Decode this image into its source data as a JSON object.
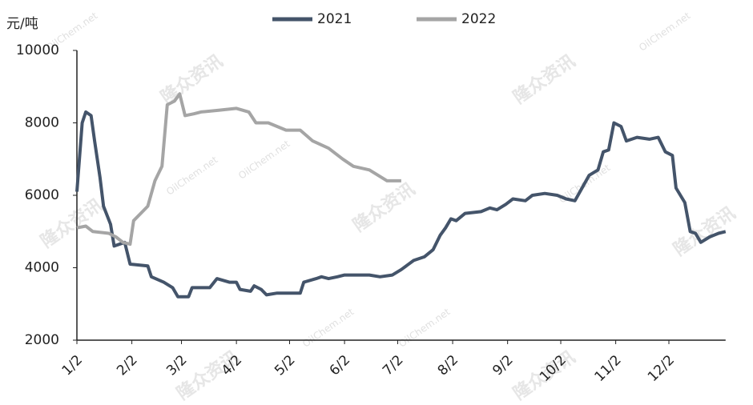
{
  "chart_data": {
    "type": "line",
    "y_label": "元/吨",
    "annotations": [
      "隆众资讯",
      "OilChem.net"
    ],
    "x": [],
    "xlim": [
      0,
      366
    ],
    "xticks": [
      {
        "value": 0,
        "label": "1/2"
      },
      {
        "value": 31,
        "label": "2/2"
      },
      {
        "value": 59,
        "label": "3/2"
      },
      {
        "value": 90,
        "label": "4/2"
      },
      {
        "value": 120,
        "label": "5/2"
      },
      {
        "value": 151,
        "label": "6/2"
      },
      {
        "value": 181,
        "label": "7/2"
      },
      {
        "value": 212,
        "label": "8/2"
      },
      {
        "value": 243,
        "label": "9/2"
      },
      {
        "value": 273,
        "label": "10/2"
      },
      {
        "value": 304,
        "label": "11/2"
      },
      {
        "value": 334,
        "label": "12/2"
      }
    ],
    "ylim": [
      2000,
      10000
    ],
    "yticks": [
      2000,
      4000,
      6000,
      8000,
      10000
    ],
    "legend": "top",
    "series": [
      {
        "name": "2021",
        "color": "#44546a",
        "x": [
          0,
          3,
          5,
          8,
          10,
          13,
          15,
          19,
          21,
          27,
          30,
          40,
          42,
          49,
          54,
          57,
          63,
          65,
          75,
          79,
          86,
          90,
          92,
          98,
          100,
          104,
          107,
          113,
          126,
          128,
          135,
          138,
          142,
          147,
          151,
          165,
          171,
          178,
          183,
          190,
          196,
          201,
          205,
          208,
          211,
          214,
          219,
          228,
          233,
          237,
          242,
          246,
          253,
          257,
          264,
          271,
          276,
          281,
          285,
          289,
          294,
          297,
          300,
          303,
          307,
          310,
          316,
          323,
          328,
          332,
          336,
          338,
          343,
          346,
          349,
          352,
          357,
          362,
          366
        ],
        "values": [
          6100,
          8000,
          8300,
          8200,
          7500,
          6500,
          5700,
          5200,
          4600,
          4700,
          4100,
          4050,
          3750,
          3600,
          3450,
          3200,
          3200,
          3450,
          3450,
          3700,
          3600,
          3600,
          3400,
          3350,
          3500,
          3400,
          3250,
          3300,
          3300,
          3600,
          3700,
          3750,
          3700,
          3750,
          3800,
          3800,
          3750,
          3800,
          3950,
          4200,
          4300,
          4500,
          4900,
          5100,
          5350,
          5300,
          5500,
          5550,
          5650,
          5600,
          5750,
          5900,
          5850,
          6000,
          6050,
          6000,
          5900,
          5850,
          6200,
          6550,
          6700,
          7200,
          7250,
          8000,
          7900,
          7500,
          7600,
          7550,
          7600,
          7200,
          7100,
          6200,
          5800,
          5000,
          4950,
          4700,
          4850,
          4950,
          5000
        ]
      },
      {
        "name": "2022",
        "color": "#a5a5a5",
        "x": [
          0,
          5,
          9,
          18,
          22,
          26,
          30,
          32,
          36,
          40,
          44,
          48,
          51,
          55,
          58,
          61,
          66,
          70,
          80,
          90,
          97,
          101,
          108,
          118,
          126,
          133,
          142,
          150,
          156,
          165,
          175,
          183
        ],
        "values": [
          5100,
          5150,
          5000,
          4950,
          4850,
          4700,
          4650,
          5300,
          5500,
          5700,
          6400,
          6800,
          8500,
          8600,
          8800,
          8200,
          8250,
          8300,
          8350,
          8400,
          8300,
          8000,
          8000,
          7800,
          7800,
          7500,
          7300,
          7000,
          6800,
          6700,
          6400,
          6400
        ]
      }
    ]
  }
}
